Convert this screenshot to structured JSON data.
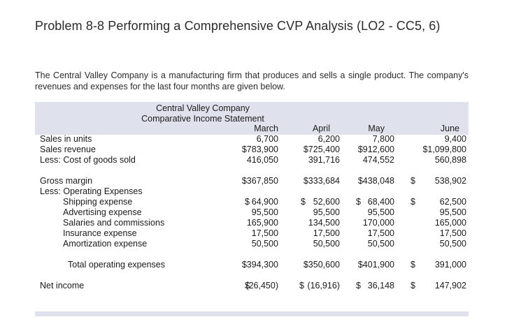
{
  "problem_title": "Problem 8-8 Performing a Comprehensive CVP Analysis (LO2 - CC5, 6)",
  "intro_text": "The Central Valley Company is a manufacturing firm that produces and sells a single product. The company's revenues and expenses for the last four months are given below.",
  "statement": {
    "company": "Central Valley Company",
    "subtitle": "Comparative Income Statement",
    "months": [
      "March",
      "April",
      "May",
      "June"
    ],
    "rows": {
      "units": {
        "label": "Sales in units",
        "values": [
          "6,700",
          "6,200",
          "7,800",
          "9,400"
        ]
      },
      "revenue": {
        "label": "Sales revenue",
        "values": [
          "$783,900",
          "$725,400",
          "$912,600",
          "$1,099,800"
        ]
      },
      "cogs": {
        "label": "Less: Cost of goods sold",
        "values": [
          "416,050",
          "391,716",
          "474,552",
          "560,898"
        ]
      },
      "gross": {
        "label": "Gross margin",
        "values": [
          "$367,850",
          "$333,684",
          "$438,048",
          "538,902"
        ],
        "june_prefix": "$"
      },
      "opex_header": {
        "label": "Less: Operating Expenses"
      },
      "shipping": {
        "label": "Shipping expense",
        "values": [
          "64,900",
          "52,600",
          "68,400",
          "62,500"
        ],
        "prefix": "$"
      },
      "advertising": {
        "label": "Advertising expense",
        "values": [
          "95,500",
          "95,500",
          "95,500",
          "95,500"
        ]
      },
      "salaries": {
        "label": "Salaries and commissions",
        "values": [
          "165,900",
          "134,500",
          "170,000",
          "165,000"
        ]
      },
      "insurance": {
        "label": "Insurance expense",
        "values": [
          "17,500",
          "17,500",
          "17,500",
          "17,500"
        ]
      },
      "amortization": {
        "label": "Amortization expense",
        "values": [
          "50,500",
          "50,500",
          "50,500",
          "50,500"
        ]
      },
      "total_opex": {
        "label": "Total operating expenses",
        "values": [
          "$394,300",
          "$350,600",
          "$401,900",
          "391,000"
        ],
        "june_prefix": "$"
      },
      "net_income": {
        "label": "Net income",
        "values": [
          "(26,450)",
          "(16,916)",
          "36,148",
          "147,902"
        ],
        "prefix": "$"
      }
    }
  }
}
